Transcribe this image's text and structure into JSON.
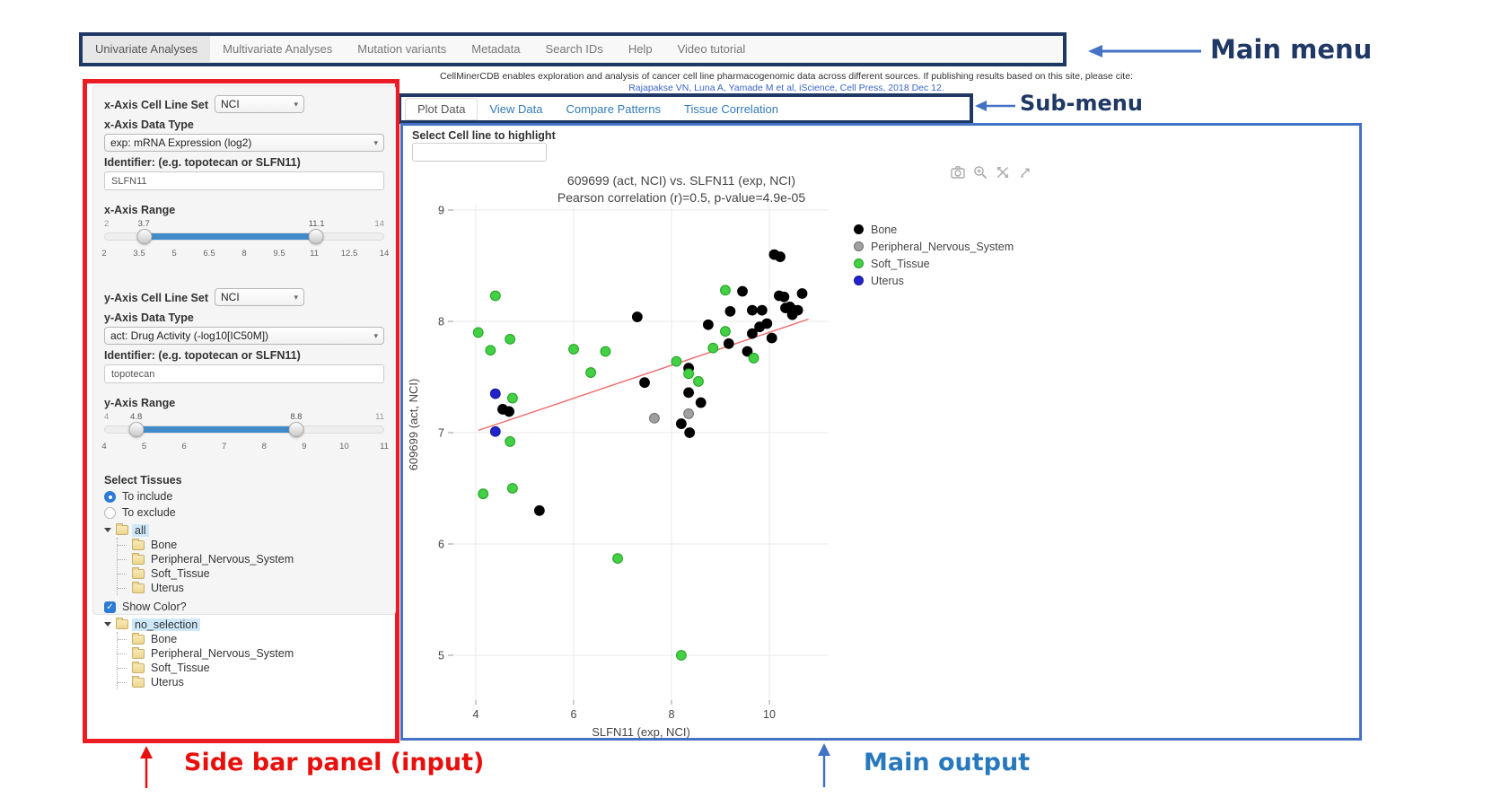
{
  "annotations": {
    "main_menu": "Main menu",
    "sub_menu": "Sub-menu",
    "sidebar": "Side bar panel (input)",
    "main_output": "Main output"
  },
  "navbar": {
    "items": [
      {
        "label": "Univariate Analyses",
        "active": true
      },
      {
        "label": "Multivariate Analyses",
        "active": false
      },
      {
        "label": "Mutation variants",
        "active": false
      },
      {
        "label": "Metadata",
        "active": false
      },
      {
        "label": "Search IDs",
        "active": false
      },
      {
        "label": "Help",
        "active": false
      },
      {
        "label": "Video tutorial",
        "active": false
      }
    ]
  },
  "citation": {
    "line1": "CellMinerCDB enables exploration and analysis of cancer cell line pharmacogenomic data across different sources. If publishing results based on this site, please cite:",
    "line2": "Rajapakse VN, Luna A, Yamade M et al, iScience, Cell Press, 2018 Dec 12."
  },
  "tabs": [
    {
      "label": "Plot Data",
      "active": true
    },
    {
      "label": "View Data",
      "active": false
    },
    {
      "label": "Compare Patterns",
      "active": false
    },
    {
      "label": "Tissue Correlation",
      "active": false
    }
  ],
  "main_output": {
    "highlight_label": "Select Cell line to highlight",
    "highlight_value": "",
    "toolbar_icons": [
      "camera-icon",
      "zoom-icon",
      "pan-icon",
      "autoscale-icon"
    ]
  },
  "sidebar": {
    "x_axis": {
      "cell_line_set_label": "x-Axis Cell Line Set",
      "cell_line_set_value": "NCI",
      "data_type_label": "x-Axis Data Type",
      "data_type_value": "exp: mRNA Expression (log2)",
      "identifier_label": "Identifier: (e.g. topotecan or SLFN11)",
      "identifier_value": "SLFN11",
      "range_label": "x-Axis Range",
      "range": {
        "min": 2,
        "max": 14,
        "low": 3.7,
        "high": 11.1,
        "scale": [
          "2",
          "3.5",
          "5",
          "6.5",
          "8",
          "9.5",
          "11",
          "12.5",
          "14"
        ]
      }
    },
    "y_axis": {
      "cell_line_set_label": "y-Axis Cell Line Set",
      "cell_line_set_value": "NCI",
      "data_type_label": "y-Axis Data Type",
      "data_type_value": "act: Drug Activity (-log10[IC50M])",
      "identifier_label": "Identifier: (e.g. topotecan or SLFN11)",
      "identifier_value": "topotecan",
      "range_label": "y-Axis Range",
      "range": {
        "min": 4,
        "max": 11,
        "low": 4.8,
        "high": 8.8,
        "scale": [
          "4",
          "5",
          "6",
          "7",
          "8",
          "9",
          "10",
          "11"
        ]
      }
    },
    "tissues": {
      "label": "Select Tissues",
      "include_label": "To include",
      "exclude_label": "To exclude",
      "include_selected": true,
      "tree_all": {
        "root": "all",
        "children": [
          "Bone",
          "Peripheral_Nervous_System",
          "Soft_Tissue",
          "Uterus"
        ]
      },
      "show_color_label": "Show Color?",
      "show_color_checked": true,
      "tree_color": {
        "root": "no_selection",
        "children": [
          "Bone",
          "Peripheral_Nervous_System",
          "Soft_Tissue",
          "Uterus"
        ]
      }
    }
  },
  "chart_data": {
    "type": "scatter",
    "title": "609699 (act, NCI) vs. SLFN11 (exp, NCI)",
    "subtitle": "Pearson correlation (r)=0.5, p-value=4.9e-05",
    "xlabel": "SLFN11 (exp, NCI)",
    "ylabel": "609699 (act, NCI)",
    "xlim": [
      3.5,
      11.3
    ],
    "ylim": [
      4.6,
      9.05
    ],
    "xticks": [
      4,
      6,
      8,
      10
    ],
    "yticks": [
      5,
      6,
      7,
      8,
      9
    ],
    "grid": true,
    "legend_position": "right",
    "trend_line": {
      "color": "#ee6a6a",
      "x1": 4.05,
      "y1": 7.02,
      "x2": 10.8,
      "y2": 8.02
    },
    "series": [
      {
        "name": "Bone",
        "color": "#000000",
        "edge": "#000000",
        "points": [
          [
            5.3,
            6.3
          ],
          [
            4.55,
            7.21
          ],
          [
            4.68,
            7.19
          ],
          [
            7.3,
            8.04
          ],
          [
            7.45,
            7.45
          ],
          [
            8.35,
            7.58
          ],
          [
            8.35,
            7.36
          ],
          [
            8.6,
            7.27
          ],
          [
            8.2,
            7.08
          ],
          [
            8.37,
            7.0
          ],
          [
            8.75,
            7.97
          ],
          [
            9.2,
            8.09
          ],
          [
            9.17,
            7.8
          ],
          [
            9.45,
            8.27
          ],
          [
            9.65,
            8.1
          ],
          [
            9.85,
            8.1
          ],
          [
            9.95,
            7.98
          ],
          [
            9.8,
            7.95
          ],
          [
            9.65,
            7.89
          ],
          [
            9.55,
            7.73
          ],
          [
            10.05,
            7.85
          ],
          [
            10.1,
            8.6
          ],
          [
            10.22,
            8.58
          ],
          [
            10.2,
            8.23
          ],
          [
            10.3,
            8.22
          ],
          [
            10.33,
            8.12
          ],
          [
            10.42,
            8.13
          ],
          [
            10.5,
            8.1
          ],
          [
            10.58,
            8.1
          ],
          [
            10.67,
            8.25
          ],
          [
            10.47,
            8.06
          ]
        ]
      },
      {
        "name": "Peripheral_Nervous_System",
        "color": "#a0a0a0",
        "edge": "#6e6e6e",
        "points": [
          [
            7.65,
            7.13
          ],
          [
            8.35,
            7.17
          ]
        ]
      },
      {
        "name": "Soft_Tissue",
        "color": "#44d044",
        "edge": "#1f9e1f",
        "points": [
          [
            4.4,
            8.23
          ],
          [
            4.05,
            7.9
          ],
          [
            4.7,
            7.84
          ],
          [
            4.3,
            7.74
          ],
          [
            6.0,
            7.75
          ],
          [
            6.65,
            7.73
          ],
          [
            6.35,
            7.54
          ],
          [
            4.75,
            7.31
          ],
          [
            4.7,
            6.92
          ],
          [
            4.15,
            6.45
          ],
          [
            4.75,
            6.5
          ],
          [
            6.9,
            5.87
          ],
          [
            8.2,
            5.0
          ],
          [
            8.1,
            7.64
          ],
          [
            8.35,
            7.53
          ],
          [
            8.55,
            7.46
          ],
          [
            8.85,
            7.76
          ],
          [
            9.1,
            8.28
          ],
          [
            9.1,
            7.91
          ],
          [
            9.68,
            7.67
          ]
        ]
      },
      {
        "name": "Uterus",
        "color": "#2222cc",
        "edge": "#15158f",
        "points": [
          [
            4.4,
            7.35
          ],
          [
            4.4,
            7.01
          ]
        ]
      }
    ]
  }
}
